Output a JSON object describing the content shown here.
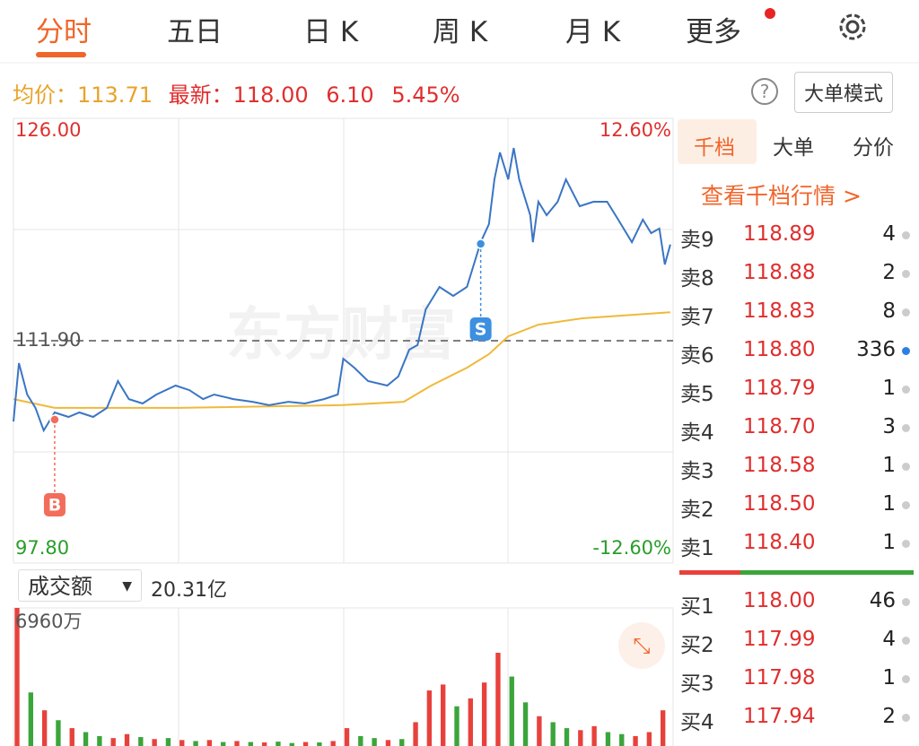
{
  "tabs": [
    "分时",
    "五日",
    "日 K",
    "周 K",
    "月 K",
    "更多"
  ],
  "quote": {
    "avg_label": "均价：",
    "avg": "113.71",
    "latest_label": "最新：",
    "latest": "118.00",
    "change": "6.10",
    "change_pct": "5.45%"
  },
  "mode_button": "大单模式",
  "watermark": "东方财富",
  "chart_data": [
    {
      "type": "line",
      "xlim": [
        0,
        240
      ],
      "ylim": [
        97.8,
        126
      ],
      "yticks": [
        {
          "value": 126,
          "label": "126.00"
        },
        {
          "value": 111.9,
          "label": "111.90"
        },
        {
          "value": 97.8,
          "label": "97.80"
        }
      ],
      "y2lim": [
        -12.6,
        12.6
      ],
      "y2ticks": [
        {
          "value": 12.6,
          "label": "12.60%"
        },
        {
          "value": -12.6,
          "label": "-12.60%"
        }
      ],
      "series": [
        {
          "color": "#3a75c4",
          "x": [
            0,
            2,
            5,
            8,
            11,
            15,
            20,
            24,
            29,
            34,
            38,
            42,
            47,
            52,
            59,
            64,
            69,
            73,
            80,
            87,
            93,
            100,
            106,
            113,
            118,
            120,
            124,
            129,
            136,
            140,
            144,
            147,
            150,
            155,
            160,
            165,
            170,
            173,
            175,
            177,
            180,
            182,
            184,
            188,
            189,
            191,
            194,
            198,
            201,
            206,
            211,
            216,
            220,
            225,
            229,
            232,
            235,
            237,
            239
          ],
          "values": [
            106.78,
            110.48,
            108.49,
            107.64,
            106.21,
            107.35,
            107.07,
            107.35,
            107.07,
            107.64,
            109.34,
            108.2,
            107.92,
            108.49,
            109.06,
            108.77,
            108.2,
            108.49,
            108.2,
            108.03,
            107.81,
            108.03,
            107.92,
            108.2,
            108.49,
            110.76,
            110.19,
            109.34,
            109.06,
            109.63,
            111.33,
            111.62,
            113.89,
            115.31,
            114.74,
            115.31,
            118.15,
            119.29,
            122.13,
            123.84,
            122.13,
            124.12,
            122.13,
            119.86,
            118.15,
            120.71,
            119.86,
            120.71,
            122.13,
            120.43,
            120.71,
            120.71,
            119.58,
            118.15,
            119.58,
            118.72,
            119.01,
            116.73,
            118.0
          ]
        },
        {
          "color": "#f0b93a",
          "x": [
            0,
            15,
            60,
            119,
            142,
            152,
            165,
            173,
            180,
            191,
            207,
            239
          ],
          "values": [
            108.2,
            107.64,
            107.64,
            107.81,
            108.03,
            109.06,
            110.19,
            111.05,
            112.18,
            112.92,
            113.32,
            113.71
          ]
        }
      ],
      "annotations": [
        {
          "label": "B",
          "x": 15,
          "y": 106.9,
          "color": "#f26d5b"
        },
        {
          "label": "S",
          "x": 170,
          "y": 118.04,
          "color": "#3d8fe0"
        }
      ]
    },
    {
      "type": "bar",
      "xlim": [
        0,
        240
      ],
      "ylim": [
        0,
        6960
      ],
      "yticks": [
        {
          "value": 6960,
          "label": "6960万"
        }
      ],
      "x": [
        0,
        5,
        10,
        15,
        20,
        25,
        30,
        35,
        40,
        45,
        50,
        55,
        60,
        65,
        70,
        75,
        80,
        85,
        90,
        95,
        100,
        105,
        110,
        115,
        120,
        125,
        130,
        135,
        140,
        145,
        150,
        155,
        160,
        165,
        170,
        175,
        180,
        185,
        190,
        195,
        200,
        205,
        210,
        215,
        220,
        225,
        230,
        235
      ],
      "values": [
        6960,
        2700,
        1800,
        1300,
        900,
        700,
        500,
        400,
        600,
        450,
        350,
        400,
        300,
        250,
        300,
        200,
        250,
        200,
        180,
        220,
        150,
        200,
        180,
        250,
        900,
        500,
        400,
        300,
        350,
        1200,
        2800,
        3100,
        2000,
        2400,
        3200,
        4700,
        3500,
        2200,
        1500,
        1200,
        900,
        800,
        1000,
        700,
        600,
        500,
        700,
        1800
      ],
      "colors": [
        "#e8413c",
        "#3aa53a",
        "#e8413c",
        "#3aa53a",
        "#e8413c",
        "#3aa53a",
        "#3aa53a",
        "#e8413c",
        "#e8413c",
        "#3aa53a",
        "#e8413c",
        "#3aa53a",
        "#e8413c",
        "#3aa53a",
        "#e8413c",
        "#3aa53a",
        "#e8413c",
        "#3aa53a",
        "#e8413c",
        "#3aa53a",
        "#3aa53a",
        "#e8413c",
        "#3aa53a",
        "#e8413c",
        "#e8413c",
        "#3aa53a",
        "#3aa53a",
        "#e8413c",
        "#3aa53a",
        "#e8413c",
        "#e8413c",
        "#e8413c",
        "#3aa53a",
        "#e8413c",
        "#e8413c",
        "#e8413c",
        "#3aa53a",
        "#3aa53a",
        "#e8413c",
        "#3aa53a",
        "#3aa53a",
        "#e8413c",
        "#e8413c",
        "#3aa53a",
        "#3aa53a",
        "#e8413c",
        "#e8413c",
        "#e8413c"
      ]
    }
  ],
  "volume_selector": {
    "label": "成交额",
    "total": "20.31亿"
  },
  "order_book": {
    "tabs": [
      "千档",
      "大单",
      "分价"
    ],
    "link": "查看千档行情 >",
    "asks": [
      {
        "label": "卖9",
        "price": "118.89",
        "qty": "4",
        "dot": "#cccccc"
      },
      {
        "label": "卖8",
        "price": "118.88",
        "qty": "2",
        "dot": "#cccccc"
      },
      {
        "label": "卖7",
        "price": "118.83",
        "qty": "8",
        "dot": "#cccccc"
      },
      {
        "label": "卖6",
        "price": "118.80",
        "qty": "336",
        "dot": "#2f7fe0"
      },
      {
        "label": "卖5",
        "price": "118.79",
        "qty": "1",
        "dot": "#cccccc"
      },
      {
        "label": "卖4",
        "price": "118.70",
        "qty": "3",
        "dot": "#cccccc"
      },
      {
        "label": "卖3",
        "price": "118.58",
        "qty": "1",
        "dot": "#cccccc"
      },
      {
        "label": "卖2",
        "price": "118.50",
        "qty": "1",
        "dot": "#cccccc"
      },
      {
        "label": "卖1",
        "price": "118.40",
        "qty": "1",
        "dot": "#cccccc"
      }
    ],
    "bids": [
      {
        "label": "买1",
        "price": "118.00",
        "qty": "46",
        "dot": "#cccccc"
      },
      {
        "label": "买2",
        "price": "117.99",
        "qty": "4",
        "dot": "#cccccc"
      },
      {
        "label": "买3",
        "price": "117.98",
        "qty": "1",
        "dot": "#cccccc"
      },
      {
        "label": "买4",
        "price": "117.94",
        "qty": "2",
        "dot": "#cccccc"
      }
    ]
  }
}
